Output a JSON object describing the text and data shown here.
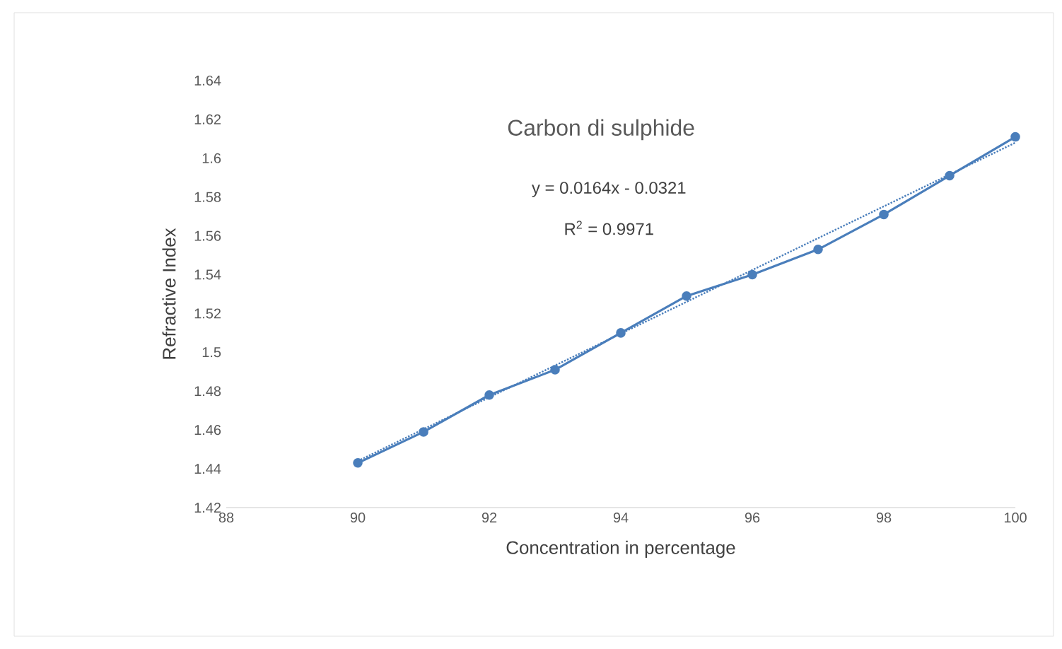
{
  "chart_data": {
    "type": "line",
    "title": "Carbon di sulphide",
    "xlabel": "Concentration  in percentage",
    "ylabel": "Refractive Index",
    "annotations": [
      "y = 0.0164x - 0.0321",
      "R$^{2}$ = 0.9971"
    ],
    "x": [
      90,
      91,
      92,
      93,
      94,
      95,
      96,
      97,
      98,
      99,
      100
    ],
    "xlim": [
      88,
      100
    ],
    "ylim": [
      1.42,
      1.64
    ],
    "xticks": [
      88,
      90,
      92,
      94,
      96,
      98,
      100
    ],
    "yticks": [
      1.42,
      1.44,
      1.46,
      1.48,
      1.5,
      1.52,
      1.54,
      1.56,
      1.58,
      1.6,
      1.62,
      1.64
    ],
    "series": [
      {
        "color": "#4a7ebb",
        "marker": "circle",
        "line_style": "solid",
        "values": [
          1.443,
          1.459,
          1.478,
          1.491,
          1.51,
          1.529,
          1.54,
          1.553,
          1.571,
          1.591,
          1.611
        ]
      },
      {
        "type": "line",
        "color": "#4a7ebb",
        "marker": "none",
        "line_style": "dotted",
        "x": [
          90,
          100
        ],
        "values": [
          1.444,
          1.608
        ]
      }
    ]
  }
}
